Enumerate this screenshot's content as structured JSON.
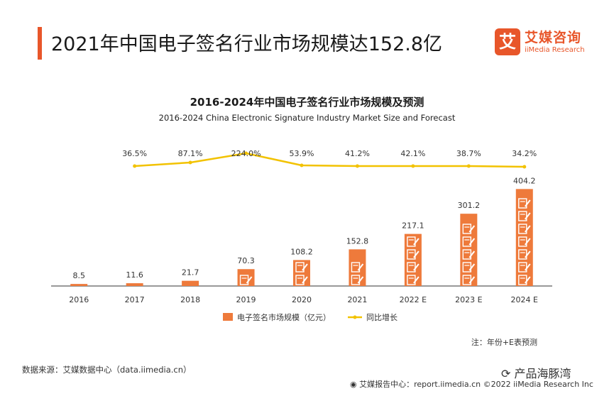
{
  "header": {
    "title": "2021年中国电子签名行业市场规模达152.8亿",
    "brand_cn": "艾媒咨询",
    "brand_en": "iiMedia Research",
    "brand_logo_char": "艾"
  },
  "chart_data": {
    "type": "bar",
    "title": "2016-2024年中国电子签名行业市场规模及预测",
    "subtitle": "2016-2024 China Electronic Signature Industry Market Size and Forecast",
    "categories": [
      "2016",
      "2017",
      "2018",
      "2019",
      "2020",
      "2021",
      "2022 E",
      "2023 E",
      "2024 E"
    ],
    "series": [
      {
        "name": "电子签名市场规模（亿元）",
        "type": "bar",
        "values": [
          8.5,
          11.6,
          21.7,
          70.3,
          108.2,
          152.8,
          217.1,
          301.2,
          404.2
        ],
        "labels": [
          "8.5",
          "11.6",
          "21.7",
          "70.3",
          "108.2",
          "152.8",
          "217.1",
          "301.2",
          "404.2"
        ],
        "color": "#ee7a3b",
        "ylim": [
          0,
          420
        ]
      },
      {
        "name": "同比增长",
        "type": "line",
        "values": [
          null,
          36.5,
          87.1,
          224.0,
          53.9,
          41.2,
          42.1,
          38.7,
          34.2
        ],
        "labels": [
          "",
          "36.5%",
          "87.1%",
          "224.0%",
          "53.9%",
          "41.2%",
          "42.1%",
          "38.7%",
          "34.2%"
        ],
        "color": "#f2c200"
      }
    ],
    "legend_position": "bottom-center"
  },
  "note": "注：年份+E表预测",
  "source": "数据来源：艾媒数据中心（data.iimedia.cn）",
  "footer": "艾媒报告中心：report.iimedia.cn   ©2022  iiMedia Research  Inc",
  "watermark": "产品海豚湾",
  "colors": {
    "accent": "#e8562a",
    "bar": "#ee7a3b",
    "line": "#f2c200"
  }
}
